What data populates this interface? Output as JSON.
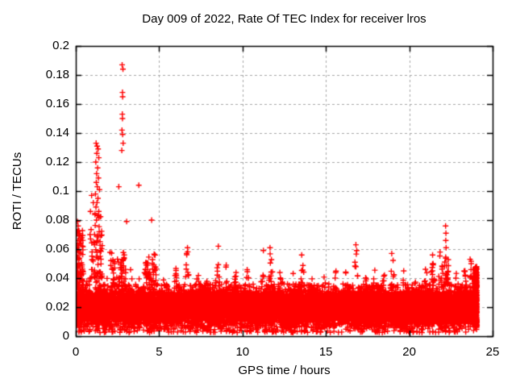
{
  "window": {
    "background": "#ffffff"
  },
  "chart_data": {
    "type": "scatter",
    "title": "Day 009 of 2022, Rate Of TEC Index for receiver lros",
    "xlabel": "GPS time / hours",
    "ylabel": "ROTI / TECUs",
    "xlim": [
      0,
      25
    ],
    "ylim": [
      0,
      0.2
    ],
    "xticks": [
      0,
      5,
      10,
      15,
      20,
      25
    ],
    "xtick_labels": [
      "0",
      "5",
      "10",
      "15",
      "20",
      "25"
    ],
    "yticks": [
      0,
      0.02,
      0.04,
      0.06,
      0.08,
      0.1,
      0.12,
      0.14,
      0.16,
      0.18,
      0.2
    ],
    "ytick_labels": [
      "0",
      "0.02",
      "0.04",
      "0.06",
      "0.08",
      "0.1",
      "0.12",
      "0.14",
      "0.16",
      "0.18",
      "0.2"
    ],
    "grid": true,
    "legend": "none",
    "marker": "plus",
    "marker_size_px": 7,
    "colors": {
      "points": "#ff0000",
      "grid": "#a6a6a6",
      "frame": "#000000",
      "text": "#000000"
    },
    "x_data_range": [
      0,
      24.05
    ],
    "description": "Dense noise band of ROTI values ~0.005-0.035 TECU across 0-24 h with burst peaks to ~0.04-0.06 and major scintillation spikes near 0.1-0.3 h (to 0.08), 0.9-1.5 h (to 0.133), 2.8 h (to 0.187) and 22.2 h (to 0.076).",
    "envelope_peaks": [
      [
        0.15,
        0.07
      ],
      [
        0.7,
        0.052
      ],
      [
        1.3,
        0.062
      ],
      [
        1.9,
        0.046
      ],
      [
        2.3,
        0.052
      ],
      [
        2.8,
        0.056
      ],
      [
        3.3,
        0.047
      ],
      [
        3.8,
        0.044
      ],
      [
        4.3,
        0.056
      ],
      [
        4.75,
        0.058
      ],
      [
        5.3,
        0.042
      ],
      [
        6.0,
        0.047
      ],
      [
        6.7,
        0.06
      ],
      [
        7.3,
        0.047
      ],
      [
        7.9,
        0.044
      ],
      [
        8.5,
        0.058
      ],
      [
        9.0,
        0.052
      ],
      [
        9.6,
        0.046
      ],
      [
        10.3,
        0.051
      ],
      [
        11.2,
        0.058
      ],
      [
        11.7,
        0.06
      ],
      [
        12.3,
        0.051
      ],
      [
        13.0,
        0.047
      ],
      [
        13.6,
        0.055
      ],
      [
        14.2,
        0.045
      ],
      [
        14.9,
        0.043
      ],
      [
        15.6,
        0.047
      ],
      [
        16.2,
        0.045
      ],
      [
        16.8,
        0.06
      ],
      [
        17.4,
        0.048
      ],
      [
        17.9,
        0.054
      ],
      [
        18.5,
        0.049
      ],
      [
        19.0,
        0.056
      ],
      [
        19.7,
        0.047
      ],
      [
        20.4,
        0.051
      ],
      [
        21.0,
        0.048
      ],
      [
        21.4,
        0.054
      ],
      [
        21.85,
        0.058
      ],
      [
        22.2,
        0.062
      ],
      [
        22.8,
        0.047
      ],
      [
        23.3,
        0.049
      ],
      [
        23.7,
        0.053
      ],
      [
        24.0,
        0.05
      ]
    ],
    "outliers": [
      [
        2.78,
        0.187
      ],
      [
        2.83,
        0.184
      ],
      [
        2.8,
        0.168
      ],
      [
        2.81,
        0.165
      ],
      [
        2.79,
        0.153
      ],
      [
        2.8,
        0.15
      ],
      [
        2.77,
        0.142
      ],
      [
        2.81,
        0.139
      ],
      [
        2.84,
        0.133
      ],
      [
        2.76,
        0.128
      ],
      [
        2.58,
        0.103
      ],
      [
        3.05,
        0.079
      ],
      [
        3.78,
        0.104
      ],
      [
        4.55,
        0.08
      ],
      [
        1.22,
        0.133
      ],
      [
        1.28,
        0.131
      ],
      [
        1.34,
        0.129
      ],
      [
        1.26,
        0.126
      ],
      [
        1.38,
        0.123
      ],
      [
        1.2,
        0.12
      ],
      [
        1.31,
        0.116
      ],
      [
        1.25,
        0.112
      ],
      [
        1.36,
        0.109
      ],
      [
        1.23,
        0.106
      ],
      [
        1.29,
        0.103
      ],
      [
        1.42,
        0.101
      ],
      [
        1.18,
        0.098
      ],
      [
        1.33,
        0.095
      ],
      [
        1.27,
        0.092
      ],
      [
        1.21,
        0.089
      ],
      [
        1.38,
        0.086
      ],
      [
        1.3,
        0.083
      ],
      [
        1.24,
        0.08
      ],
      [
        0.95,
        0.097
      ],
      [
        1.05,
        0.092
      ],
      [
        0.88,
        0.086
      ],
      [
        0.1,
        0.079
      ],
      [
        0.14,
        0.076
      ],
      [
        0.08,
        0.072
      ],
      [
        0.18,
        0.069
      ],
      [
        0.12,
        0.066
      ],
      [
        0.22,
        0.064
      ],
      [
        0.09,
        0.061
      ],
      [
        0.16,
        0.059
      ],
      [
        0.05,
        0.056
      ],
      [
        0.3,
        0.057
      ],
      [
        22.18,
        0.076
      ],
      [
        22.2,
        0.071
      ],
      [
        22.19,
        0.066
      ],
      [
        22.21,
        0.061
      ],
      [
        6.7,
        0.061
      ],
      [
        6.65,
        0.057
      ],
      [
        8.55,
        0.062
      ],
      [
        11.25,
        0.059
      ],
      [
        11.65,
        0.061
      ],
      [
        13.55,
        0.056
      ],
      [
        16.8,
        0.063
      ],
      [
        16.85,
        0.059
      ],
      [
        18.95,
        0.057
      ],
      [
        21.4,
        0.056
      ],
      [
        21.85,
        0.058
      ],
      [
        23.65,
        0.053
      ]
    ],
    "clusters": [
      [
        0.02,
        0.45,
        0.032,
        0.075,
        60
      ],
      [
        0.85,
        1.6,
        0.04,
        0.085,
        60
      ],
      [
        2.05,
        3.0,
        0.035,
        0.058,
        40
      ],
      [
        4.1,
        4.9,
        0.035,
        0.058,
        30
      ],
      [
        21.95,
        22.35,
        0.035,
        0.055,
        22
      ],
      [
        0.0,
        0.06,
        0.01,
        0.06,
        60
      ],
      [
        23.93,
        24.06,
        0.006,
        0.048,
        350
      ]
    ],
    "noise_band": {
      "n_core": 12000,
      "core_y": [
        0.006,
        0.032
      ],
      "n_tail": 3000,
      "tail_base": 0.02,
      "tail_exp": 2.2,
      "envelope_base": 0.036,
      "peak_sigma": 0.13,
      "n_low": 420,
      "low_y": [
        0.0025,
        0.0075
      ],
      "seed": 20220109
    }
  }
}
